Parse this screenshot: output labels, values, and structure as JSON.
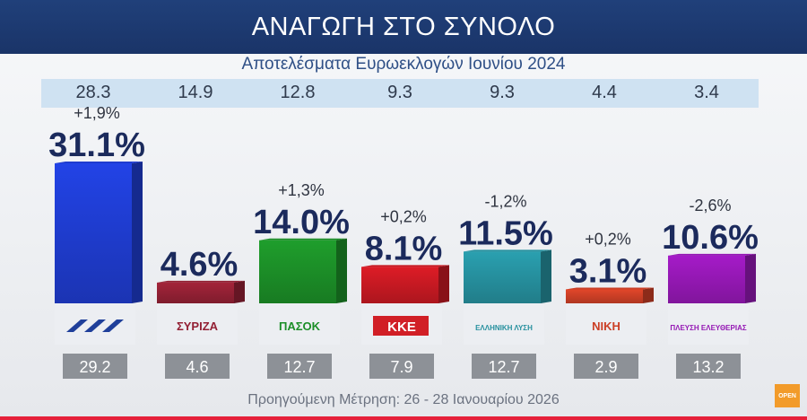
{
  "header": {
    "title": "ΑΝΑΓΩΓΗ ΣΤΟ ΣΥΝΟΛΟ"
  },
  "subtitle": "Αποτελέσματα Ευρωεκλογών Ιουνίου 2024",
  "footer": "Προηγούμενη Μέτρηση: 26 - 28 Ιανουαρίου 2026",
  "chart_data": {
    "type": "bar",
    "title": "ΑΝΑΓΩΓΗ ΣΤΟ ΣΥΝΟΛΟ",
    "categories": [
      "ΝΔ",
      "ΣΥΡΙΖΑ",
      "ΠΑΣΟΚ",
      "ΚΚΕ",
      "ΕΛΛΗΝΙΚΗ ΛΥΣΗ",
      "ΝΙΚΗ",
      "ΠΛΕΥΣΗ ΕΛΕΥΘΕΡΙΑΣ"
    ],
    "values": [
      31.1,
      4.6,
      14.0,
      8.1,
      11.5,
      3.1,
      10.6
    ],
    "value_labels": [
      "31.1%",
      "4.6%",
      "14.0%",
      "8.1%",
      "11.5%",
      "3.1%",
      "10.6%"
    ],
    "changes": [
      "+1,9%",
      "",
      "+1,3%",
      "+0,2%",
      "-1,2%",
      "+0,2%",
      "-2,6%"
    ],
    "euro_2024": [
      "28.3",
      "14.9",
      "12.8",
      "9.3",
      "9.3",
      "4.4",
      "3.4"
    ],
    "previous": [
      "29.2",
      "4.6",
      "12.7",
      "7.9",
      "12.7",
      "2.9",
      "13.2"
    ],
    "logo_texts": [
      "",
      "ΣΥΡΙΖΑ",
      "ΠΑΣΟΚ",
      "ΚΚΕ",
      "ΕΛΛΗΝΙΚΗ ΛΥΣΗ",
      "ΝΙΚΗ",
      "ΠΛΕΥΣΗ ΕΛΕΥΘΕΡΙΑΣ"
    ],
    "colors": [
      "#2243e6",
      "#a3243a",
      "#1f9e2c",
      "#dd1c26",
      "#2aa0b0",
      "#e1462a",
      "#a51bc8"
    ],
    "ylim": [
      0,
      31.1
    ],
    "grid": false
  },
  "corner_logo": {
    "text": "OPEN",
    "color": "#f29b2a"
  }
}
